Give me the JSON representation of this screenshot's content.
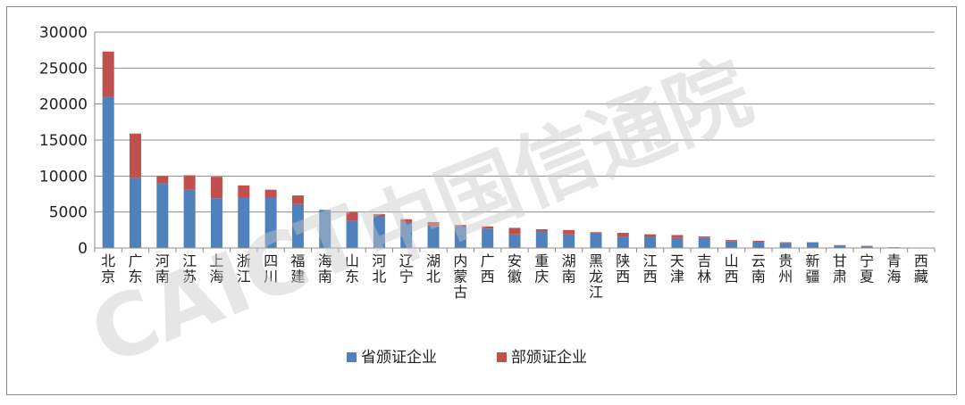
{
  "chart_data": {
    "type": "bar",
    "stacked": true,
    "categories": [
      "北京",
      "广东",
      "河南",
      "江苏",
      "上海",
      "浙江",
      "四川",
      "福建",
      "海南",
      "山东",
      "河北",
      "辽宁",
      "湖北",
      "内蒙古",
      "广西",
      "安徽",
      "重庆",
      "湖南",
      "黑龙江",
      "陕西",
      "江西",
      "天津",
      "吉林",
      "山西",
      "云南",
      "贵州",
      "新疆",
      "甘肃",
      "宁夏",
      "青海",
      "西藏"
    ],
    "series": [
      {
        "name": "省颁证企业",
        "color": "#4f81bd",
        "values": [
          21000,
          9700,
          9000,
          8100,
          6900,
          7000,
          7000,
          6100,
          5200,
          3800,
          4400,
          3600,
          3000,
          3000,
          2700,
          1900,
          2300,
          1900,
          2000,
          1600,
          1500,
          1400,
          1400,
          900,
          800,
          700,
          800,
          300,
          200,
          100,
          0
        ]
      },
      {
        "name": "部颁证企业",
        "color": "#c0504d",
        "values": [
          6300,
          6200,
          1000,
          2000,
          3000,
          1700,
          1100,
          1200,
          100,
          1200,
          300,
          400,
          600,
          200,
          300,
          900,
          300,
          600,
          200,
          500,
          400,
          400,
          200,
          200,
          200,
          100,
          0,
          100,
          100,
          0,
          0
        ]
      }
    ],
    "ylim": [
      0,
      30000
    ],
    "yticks": [
      "0",
      "5000",
      "10000",
      "15000",
      "20000",
      "25000",
      "30000"
    ],
    "grid": true,
    "legend_position": "bottom"
  },
  "watermark": {
    "latin": "CAICT",
    "cjk": "中国信通院"
  }
}
